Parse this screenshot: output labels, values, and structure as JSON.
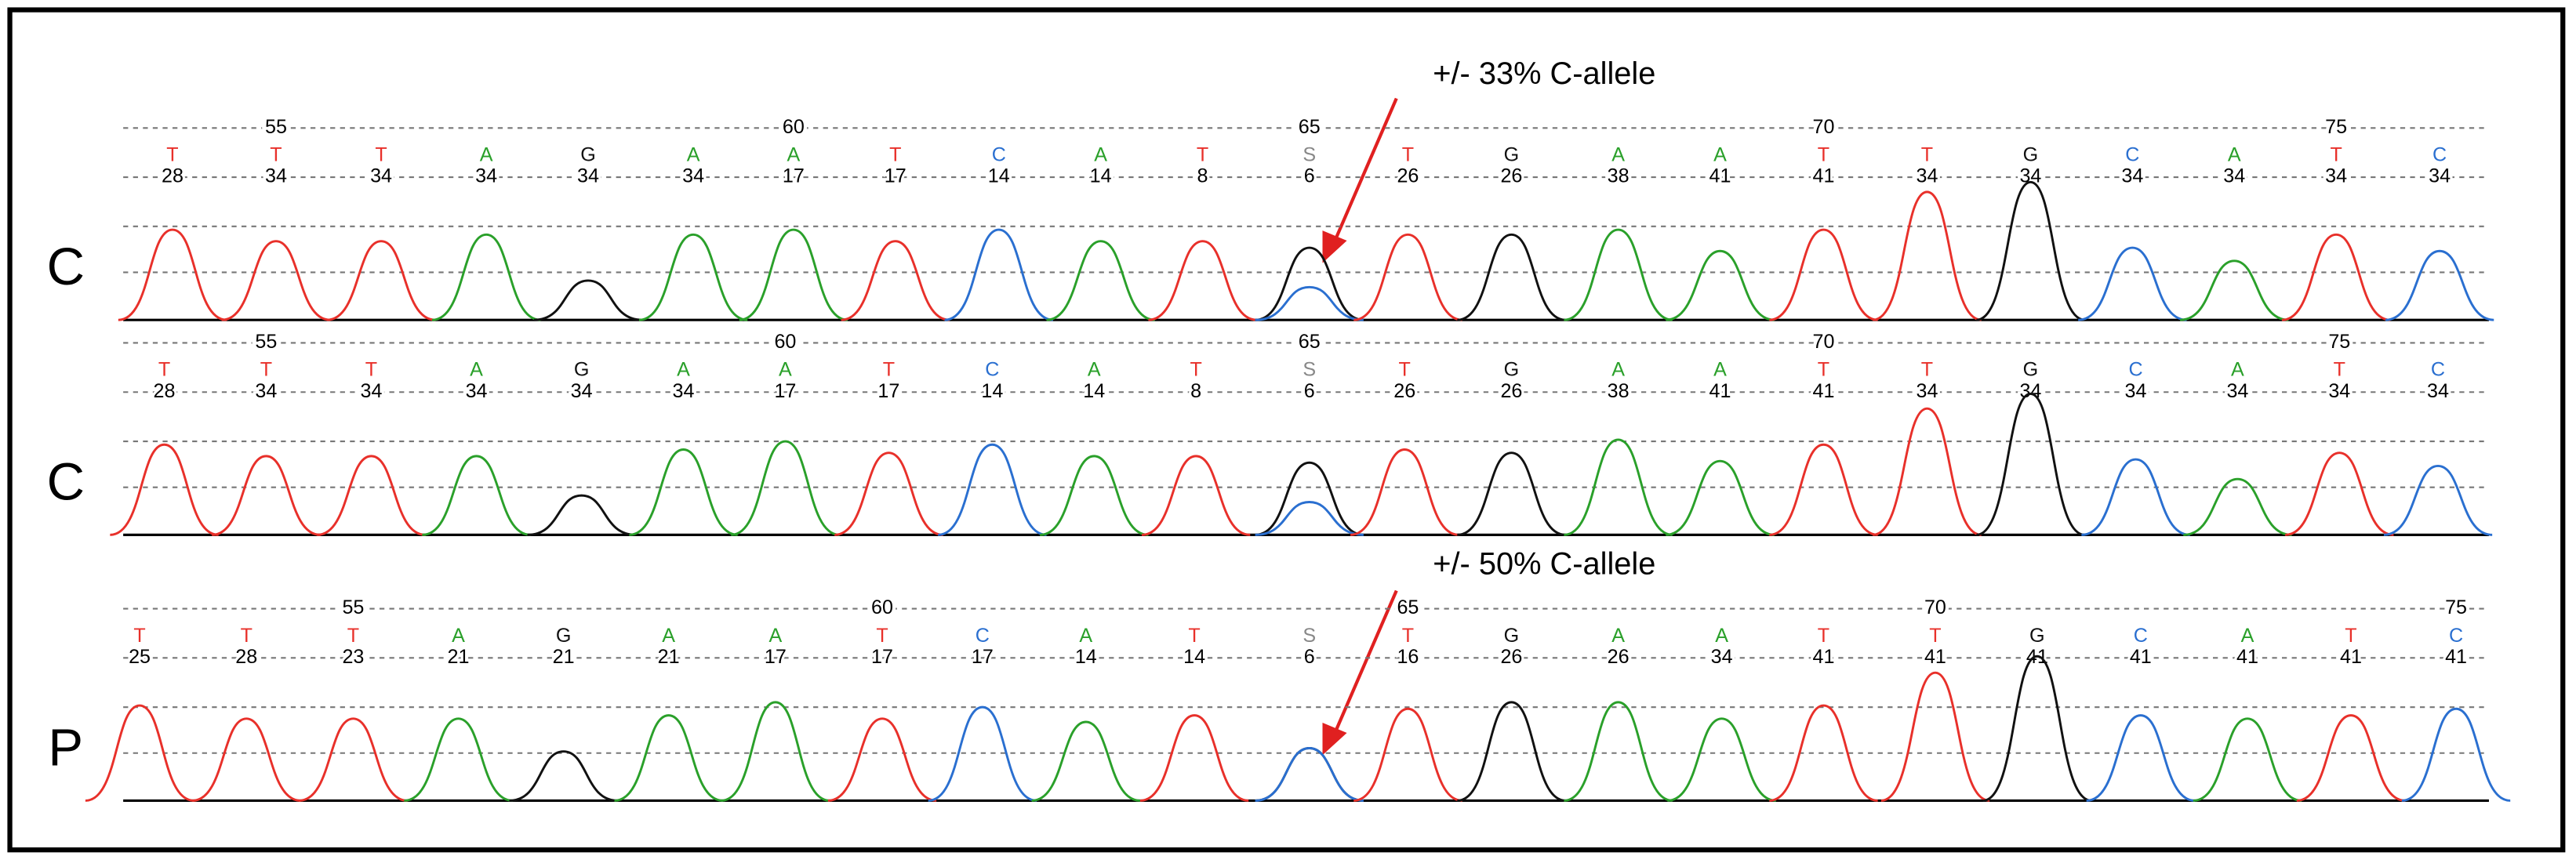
{
  "annotations": [
    {
      "text": "+/- 33% C-allele"
    },
    {
      "text": "+/- 50% C-allele"
    }
  ],
  "tracks": [
    {
      "label": "C",
      "ruler": [
        null,
        "55",
        null,
        null,
        null,
        null,
        "60",
        null,
        null,
        null,
        null,
        "65",
        null,
        null,
        null,
        null,
        "70",
        null,
        null,
        null,
        null,
        "75",
        null
      ],
      "bases": [
        "T",
        "T",
        "T",
        "A",
        "G",
        "A",
        "A",
        "T",
        "C",
        "A",
        "T",
        "S",
        "T",
        "G",
        "A",
        "A",
        "T",
        "T",
        "G",
        "C",
        "A",
        "T",
        "C"
      ],
      "quals": [
        28,
        34,
        34,
        34,
        34,
        34,
        17,
        17,
        14,
        14,
        8,
        6,
        26,
        26,
        38,
        41,
        41,
        34,
        34,
        34,
        34,
        34,
        34
      ]
    },
    {
      "label": "C",
      "ruler": [
        null,
        "55",
        null,
        null,
        null,
        null,
        "60",
        null,
        null,
        null,
        null,
        "65",
        null,
        null,
        null,
        null,
        "70",
        null,
        null,
        null,
        null,
        "75",
        null
      ],
      "bases": [
        "T",
        "T",
        "T",
        "A",
        "G",
        "A",
        "A",
        "T",
        "C",
        "A",
        "T",
        "S",
        "T",
        "G",
        "A",
        "A",
        "T",
        "T",
        "G",
        "C",
        "A",
        "T",
        "C"
      ],
      "quals": [
        28,
        34,
        34,
        34,
        34,
        34,
        17,
        17,
        14,
        14,
        8,
        6,
        26,
        26,
        38,
        41,
        41,
        34,
        34,
        34,
        34,
        34,
        34
      ]
    },
    {
      "label": "P",
      "ruler": [
        null,
        null,
        "55",
        null,
        null,
        null,
        null,
        "60",
        null,
        null,
        null,
        null,
        "65",
        null,
        null,
        null,
        null,
        "70",
        null,
        null,
        null,
        null,
        "75"
      ],
      "bases": [
        "T",
        "T",
        "T",
        "A",
        "G",
        "A",
        "A",
        "T",
        "C",
        "A",
        "T",
        "S",
        "T",
        "G",
        "A",
        "A",
        "T",
        "T",
        "G",
        "C",
        "A",
        "T",
        "C"
      ],
      "quals": [
        25,
        28,
        23,
        21,
        21,
        21,
        17,
        17,
        17,
        14,
        14,
        6,
        16,
        26,
        26,
        34,
        41,
        41,
        41,
        41,
        41,
        41,
        41
      ]
    }
  ]
}
